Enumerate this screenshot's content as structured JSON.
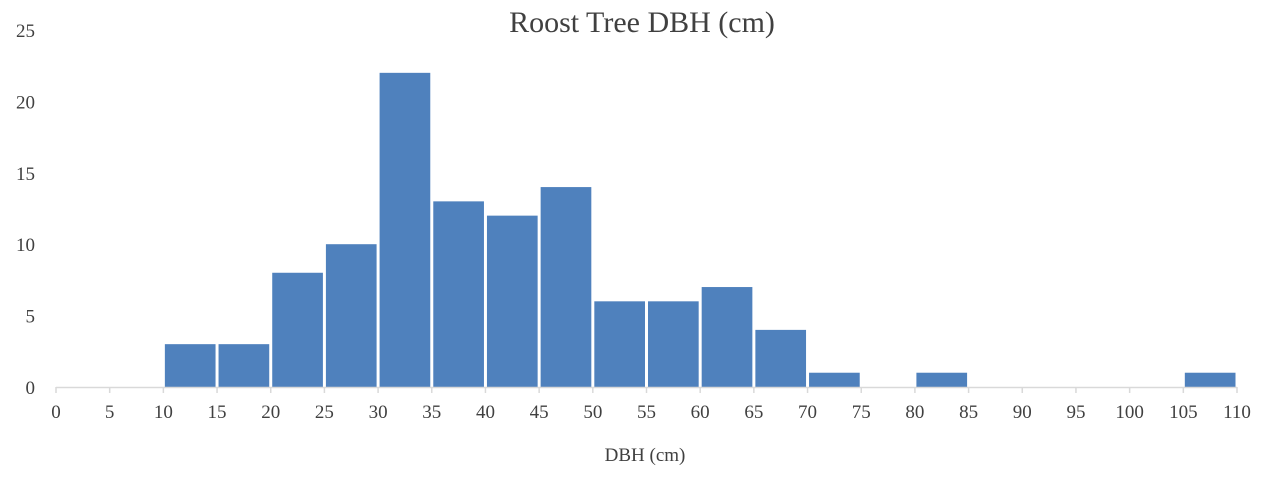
{
  "chart_data": {
    "type": "bar",
    "title": "Roost Tree DBH (cm)",
    "xlabel": "DBH (cm)",
    "ylabel": "",
    "bin_edges": [
      0,
      5,
      10,
      15,
      20,
      25,
      30,
      35,
      40,
      45,
      50,
      55,
      60,
      65,
      70,
      75,
      80,
      85,
      90,
      95,
      100,
      105,
      110
    ],
    "bins": [
      {
        "from": 10,
        "to": 15,
        "value": 3
      },
      {
        "from": 15,
        "to": 20,
        "value": 3
      },
      {
        "from": 20,
        "to": 25,
        "value": 8
      },
      {
        "from": 25,
        "to": 30,
        "value": 10
      },
      {
        "from": 30,
        "to": 35,
        "value": 22
      },
      {
        "from": 35,
        "to": 40,
        "value": 13
      },
      {
        "from": 40,
        "to": 45,
        "value": 12
      },
      {
        "from": 45,
        "to": 50,
        "value": 14
      },
      {
        "from": 50,
        "to": 55,
        "value": 6
      },
      {
        "from": 55,
        "to": 60,
        "value": 6
      },
      {
        "from": 60,
        "to": 65,
        "value": 7
      },
      {
        "from": 65,
        "to": 70,
        "value": 4
      },
      {
        "from": 70,
        "to": 75,
        "value": 1
      },
      {
        "from": 80,
        "to": 85,
        "value": 1
      },
      {
        "from": 105,
        "to": 110,
        "value": 1
      }
    ],
    "yticks": [
      0,
      5,
      10,
      15,
      20,
      25
    ],
    "ylim": [
      0,
      25
    ],
    "xlim": [
      0,
      110
    ],
    "grid": false,
    "legend": "none",
    "colors": {
      "bar": "#4f81bd",
      "axis": "#d9d9d9",
      "text": "#404040"
    }
  }
}
